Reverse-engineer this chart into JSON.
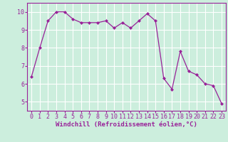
{
  "x": [
    0,
    1,
    2,
    3,
    4,
    5,
    6,
    7,
    8,
    9,
    10,
    11,
    12,
    13,
    14,
    15,
    16,
    17,
    18,
    19,
    20,
    21,
    22,
    23
  ],
  "y": [
    6.4,
    8.0,
    9.5,
    10.0,
    10.0,
    9.6,
    9.4,
    9.4,
    9.4,
    9.5,
    9.1,
    9.4,
    9.1,
    9.5,
    9.9,
    9.5,
    6.3,
    5.7,
    7.8,
    6.7,
    6.5,
    6.0,
    5.9,
    4.9
  ],
  "line_color": "#992299",
  "marker": "D",
  "markersize": 2.0,
  "linewidth": 0.9,
  "xlabel": "Windchill (Refroidissement éolien,°C)",
  "xlabel_fontsize": 6.5,
  "bg_color": "#cceedd",
  "grid_color": "#ffffff",
  "tick_fontsize": 6.0,
  "tick_color": "#992299",
  "ylim": [
    4.5,
    10.5
  ],
  "xlim": [
    -0.5,
    23.5
  ],
  "yticks": [
    5,
    6,
    7,
    8,
    9,
    10
  ],
  "xticks": [
    0,
    1,
    2,
    3,
    4,
    5,
    6,
    7,
    8,
    9,
    10,
    11,
    12,
    13,
    14,
    15,
    16,
    17,
    18,
    19,
    20,
    21,
    22,
    23
  ],
  "spine_color": "#992299"
}
